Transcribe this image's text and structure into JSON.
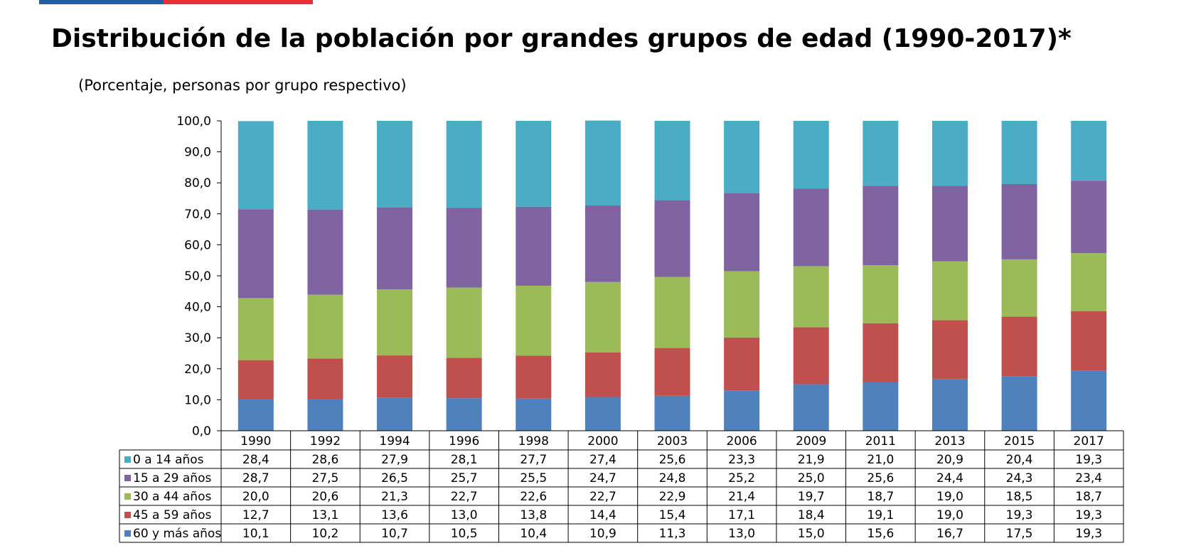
{
  "header": {
    "title": "Distribución de la población por grandes grupos de edad (1990-2017)*",
    "subtitle": "(Porcentaje, personas por grupo respectivo)"
  },
  "colors": {
    "top_bar_blue": "#1f5fa8",
    "top_bar_red": "#e5323d"
  },
  "chart_data": {
    "type": "bar",
    "stacked": true,
    "categories": [
      "1990",
      "1992",
      "1994",
      "1996",
      "1998",
      "2000",
      "2003",
      "2006",
      "2009",
      "2011",
      "2013",
      "2015",
      "2017"
    ],
    "ylim": [
      0,
      100
    ],
    "yticks": [
      "0,0",
      "10,0",
      "20,0",
      "30,0",
      "40,0",
      "50,0",
      "60,0",
      "70,0",
      "80,0",
      "90,0",
      "100,0"
    ],
    "grid": false,
    "legend": "data-table",
    "series": [
      {
        "name": "0 a 14 años",
        "color": "#4bacc6",
        "labels": [
          "28,4",
          "28,6",
          "27,9",
          "28,1",
          "27,7",
          "27,4",
          "25,6",
          "23,3",
          "21,9",
          "21,0",
          "20,9",
          "20,4",
          "19,3"
        ],
        "values": [
          28.4,
          28.6,
          27.9,
          28.1,
          27.7,
          27.4,
          25.6,
          23.3,
          21.9,
          21.0,
          20.9,
          20.4,
          19.3
        ]
      },
      {
        "name": "15 a 29 años",
        "color": "#8064a2",
        "labels": [
          "28,7",
          "27,5",
          "26,5",
          "25,7",
          "25,5",
          "24,7",
          "24,8",
          "25,2",
          "25,0",
          "25,6",
          "24,4",
          "24,3",
          "23,4"
        ],
        "values": [
          28.7,
          27.5,
          26.5,
          25.7,
          25.5,
          24.7,
          24.8,
          25.2,
          25.0,
          25.6,
          24.4,
          24.3,
          23.4
        ]
      },
      {
        "name": "30 a 44 años",
        "color": "#9bbb59",
        "labels": [
          "20,0",
          "20,6",
          "21,3",
          "22,7",
          "22,6",
          "22,7",
          "22,9",
          "21,4",
          "19,7",
          "18,7",
          "19,0",
          "18,5",
          "18,7"
        ],
        "values": [
          20.0,
          20.6,
          21.3,
          22.7,
          22.6,
          22.7,
          22.9,
          21.4,
          19.7,
          18.7,
          19.0,
          18.5,
          18.7
        ]
      },
      {
        "name": "45 a 59 años",
        "color": "#c0504d",
        "labels": [
          "12,7",
          "13,1",
          "13,6",
          "13,0",
          "13,8",
          "14,4",
          "15,4",
          "17,1",
          "18,4",
          "19,1",
          "19,0",
          "19,3",
          "19,3"
        ],
        "values": [
          12.7,
          13.1,
          13.6,
          13.0,
          13.8,
          14.4,
          15.4,
          17.1,
          18.4,
          19.1,
          19.0,
          19.3,
          19.3
        ]
      },
      {
        "name": "60 y más años",
        "color": "#4f81bd",
        "labels": [
          "10,1",
          "10,2",
          "10,7",
          "10,5",
          "10,4",
          "10,9",
          "11,3",
          "13,0",
          "15,0",
          "15,6",
          "16,7",
          "17,5",
          "19,3"
        ],
        "values": [
          10.1,
          10.2,
          10.7,
          10.5,
          10.4,
          10.9,
          11.3,
          13.0,
          15.0,
          15.6,
          16.7,
          17.5,
          19.3
        ]
      }
    ]
  }
}
